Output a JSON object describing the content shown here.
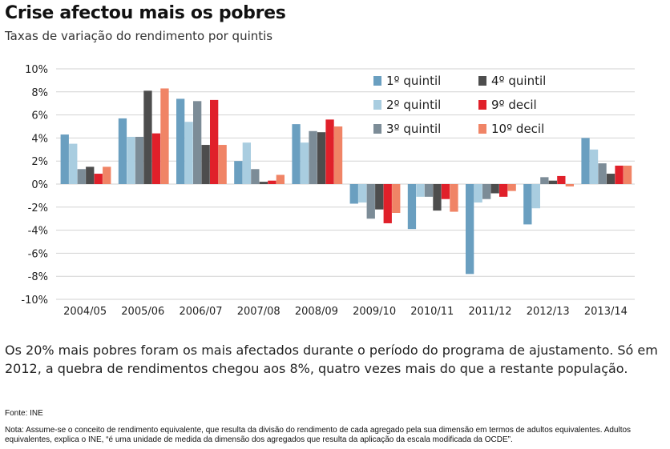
{
  "header": {
    "title": "Crise afectou mais os pobres",
    "subtitle": "Taxas de variação do rendimento por quintis"
  },
  "chart_data": {
    "type": "bar",
    "categories": [
      "2004/05",
      "2005/06",
      "2006/07",
      "2007/08",
      "2008/09",
      "2009/10",
      "2010/11",
      "2011/12",
      "2012/13",
      "2013/14"
    ],
    "series": [
      {
        "name": "1º quintil",
        "color": "#6a9fc0",
        "values": [
          4.3,
          5.7,
          7.4,
          2.0,
          5.2,
          -1.7,
          -3.9,
          -7.8,
          -3.5,
          4.0
        ]
      },
      {
        "name": "2º quintil",
        "color": "#a9cde0",
        "values": [
          3.5,
          4.1,
          5.4,
          3.6,
          3.6,
          -1.6,
          -1.1,
          -1.6,
          -2.1,
          3.0
        ]
      },
      {
        "name": "3º quintil",
        "color": "#7c8c97",
        "values": [
          1.3,
          4.1,
          7.2,
          1.3,
          4.6,
          -3.0,
          -1.1,
          -1.3,
          0.6,
          1.8
        ]
      },
      {
        "name": "4º quintil",
        "color": "#4d4d4d",
        "values": [
          1.5,
          8.1,
          3.4,
          0.2,
          4.5,
          -2.2,
          -2.3,
          -0.8,
          0.3,
          0.9
        ]
      },
      {
        "name": "9º decil",
        "color": "#e0202a",
        "values": [
          0.9,
          4.4,
          7.3,
          0.3,
          5.6,
          -3.4,
          -1.3,
          -1.1,
          0.7,
          1.6
        ]
      },
      {
        "name": "10º decil",
        "color": "#f08466",
        "values": [
          1.5,
          8.3,
          3.4,
          0.8,
          5.0,
          -2.5,
          -2.4,
          -0.6,
          -0.2,
          1.6
        ]
      }
    ],
    "legend_order": [
      0,
      3,
      1,
      4,
      2,
      5
    ],
    "ylim": [
      -10,
      10
    ],
    "yticks": [
      10,
      8,
      6,
      4,
      2,
      0,
      -2,
      -4,
      -6,
      -8,
      -10
    ],
    "ytick_labels": [
      "10%",
      "8%",
      "6%",
      "4%",
      "2%",
      "0%",
      "-2%",
      "-4%",
      "-6%",
      "-8%",
      "-10%"
    ],
    "grid": true,
    "legend_position": "top-right"
  },
  "footer": {
    "body": "Os 20% mais pobres foram os mais afectados durante o período do programa de ajustamento. Só em 2012, a quebra de rendimentos chegou aos 8%, quatro vezes mais do que a restante população.",
    "source": "Fonte: INE",
    "note": "Nota: Assume-se o conceito de rendimento equivalente, que resulta da divisão do rendimento de cada agregado pela sua dimensão em termos de adultos equivalentes. Adultos equivalentes, explica o INE, “é uma unidade de medida da dimensão dos agregados que resulta da aplicação da escala modificada da OCDE”."
  }
}
